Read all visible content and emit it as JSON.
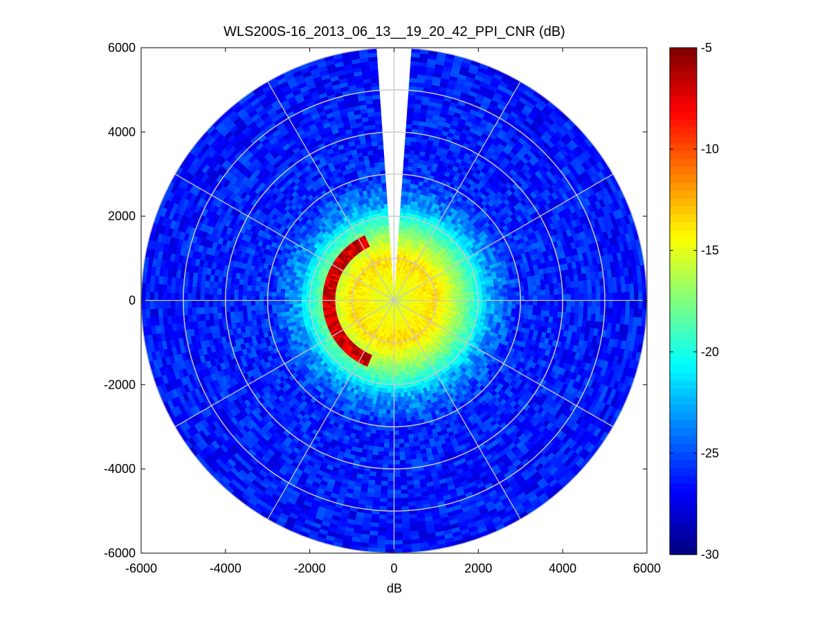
{
  "chart_data": {
    "type": "heatmap",
    "subtype": "polar-ppi",
    "title": "WLS200S-16_2013_06_13__19_20_42_PPI_CNR (dB)",
    "xlabel": "dB",
    "ylabel": "",
    "xlim": [
      -6000,
      6000
    ],
    "ylim": [
      -6000,
      6000
    ],
    "xticks": [
      -6000,
      -4000,
      -2000,
      0,
      2000,
      4000,
      6000
    ],
    "yticks": [
      -6000,
      -4000,
      -2000,
      0,
      2000,
      4000,
      6000
    ],
    "x_tick_labels": [
      "-6000",
      "-4000",
      "-2000",
      "0",
      "2000",
      "4000",
      "6000"
    ],
    "y_tick_labels": [
      "6000",
      "4000",
      "2000",
      "0",
      "-2000",
      "-4000",
      "-6000"
    ],
    "max_range": 6000,
    "range_rings": [
      1000,
      2000,
      3000,
      4000,
      5000,
      6000
    ],
    "azimuth_spokes_deg": [
      0,
      30,
      60,
      90,
      120,
      150,
      180,
      210,
      240,
      270,
      300,
      330
    ],
    "data_gap_azimuth_deg": [
      -3,
      3
    ],
    "grid": true,
    "colormap": "jet",
    "colorbar": {
      "min": -30,
      "max": -5,
      "ticks": [
        -5,
        -10,
        -15,
        -20,
        -25,
        -30
      ],
      "tick_labels": [
        "-5",
        "-10",
        "-15",
        "-20",
        "-25",
        "-30"
      ],
      "placement": "right"
    },
    "range_profile_db": [
      {
        "range": 0,
        "cnr": -15.5
      },
      {
        "range": 500,
        "cnr": -14.5
      },
      {
        "range": 1000,
        "cnr": -13.5
      },
      {
        "range": 1500,
        "cnr": -16.5
      },
      {
        "range": 2000,
        "cnr": -20
      },
      {
        "range": 2300,
        "cnr": -23
      },
      {
        "range": 3000,
        "cnr": -26
      },
      {
        "range": 6000,
        "cnr": -26.5
      }
    ],
    "annotations": [
      {
        "text": "high CNR arc (≈ -5 dB) on west edge near range 1600",
        "type": "region"
      }
    ]
  }
}
